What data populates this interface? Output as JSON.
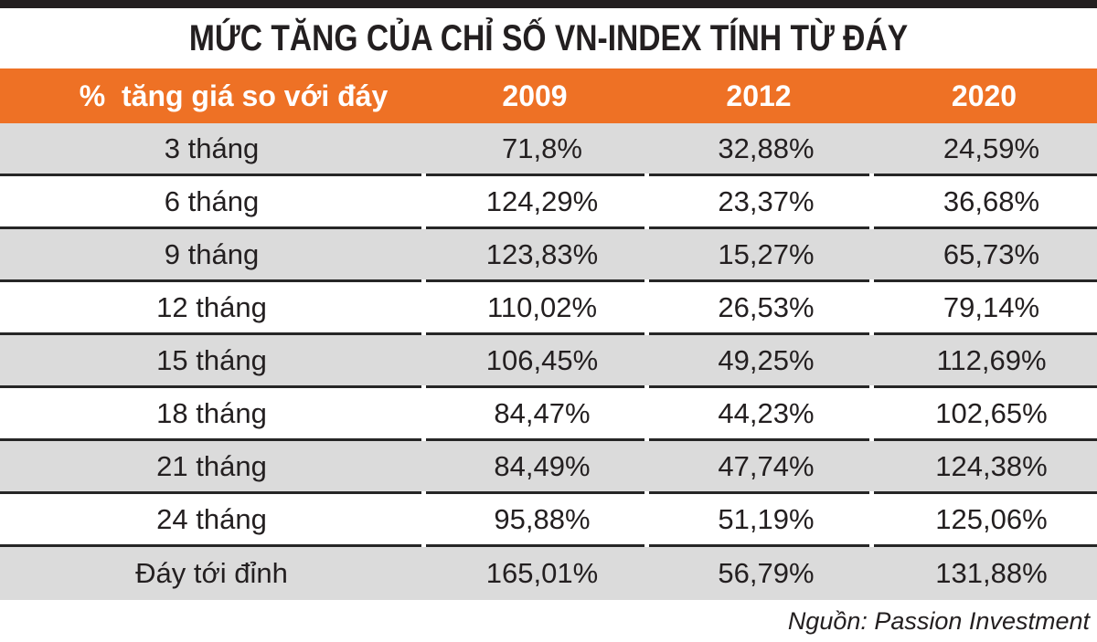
{
  "title": "MỨC TĂNG CỦA CHỈ SỐ VN-INDEX TÍNH TỪ ĐÁY",
  "table": {
    "header": {
      "label": "%  tăng giá so với đáy",
      "col2009": "2009",
      "col2012": "2012",
      "col2020": "2020"
    },
    "rows": [
      {
        "label": "3 tháng",
        "y2009": "71,8%",
        "y2012": "32,88%",
        "y2020": "24,59%"
      },
      {
        "label": "6 tháng",
        "y2009": "124,29%",
        "y2012": "23,37%",
        "y2020": "36,68%"
      },
      {
        "label": "9 tháng",
        "y2009": "123,83%",
        "y2012": "15,27%",
        "y2020": "65,73%"
      },
      {
        "label": "12 tháng",
        "y2009": "110,02%",
        "y2012": "26,53%",
        "y2020": "79,14%"
      },
      {
        "label": "15 tháng",
        "y2009": "106,45%",
        "y2012": "49,25%",
        "y2020": "112,69%"
      },
      {
        "label": "18 tháng",
        "y2009": "84,47%",
        "y2012": "44,23%",
        "y2020": "102,65%"
      },
      {
        "label": "21 tháng",
        "y2009": "84,49%",
        "y2012": "47,74%",
        "y2020": "124,38%"
      },
      {
        "label": "24 tháng",
        "y2009": "95,88%",
        "y2012": "51,19%",
        "y2020": "125,06%"
      },
      {
        "label": "Đáy tới đỉnh",
        "y2009": "165,01%",
        "y2012": "56,79%",
        "y2020": "131,88%"
      }
    ]
  },
  "footer": {
    "source": "Nguồn: Passion Investment"
  },
  "colors": {
    "accent_orange": "#EE7125",
    "row_alt_gray": "#DBDBDB",
    "separator_line": "#262626",
    "text_dark": "#231F20",
    "header_text": "#FFFFFF"
  },
  "chart_data": {
    "type": "table",
    "title": "MỨC TĂNG CỦA CHỈ SỐ VN-INDEX TÍNH TỪ ĐÁY",
    "columns": [
      "% tăng giá so với đáy",
      "2009",
      "2012",
      "2020"
    ],
    "categories": [
      "3 tháng",
      "6 tháng",
      "9 tháng",
      "12 tháng",
      "15 tháng",
      "18 tháng",
      "21 tháng",
      "24 tháng",
      "Đáy tới đỉnh"
    ],
    "series": [
      {
        "name": "2009",
        "values": [
          71.8,
          124.29,
          123.83,
          110.02,
          106.45,
          84.47,
          84.49,
          95.88,
          165.01
        ]
      },
      {
        "name": "2012",
        "values": [
          32.88,
          23.37,
          15.27,
          26.53,
          49.25,
          44.23,
          47.74,
          51.19,
          56.79
        ]
      },
      {
        "name": "2020",
        "values": [
          24.59,
          36.68,
          65.73,
          79.14,
          112.69,
          102.65,
          124.38,
          125.06,
          131.88
        ]
      }
    ],
    "unit": "%",
    "decimal_separator": ",",
    "source": "Nguồn: Passion Investment",
    "layout": {
      "header_background": "#EE7125",
      "alternating_rows": true,
      "first_row_shade": "gray"
    }
  }
}
